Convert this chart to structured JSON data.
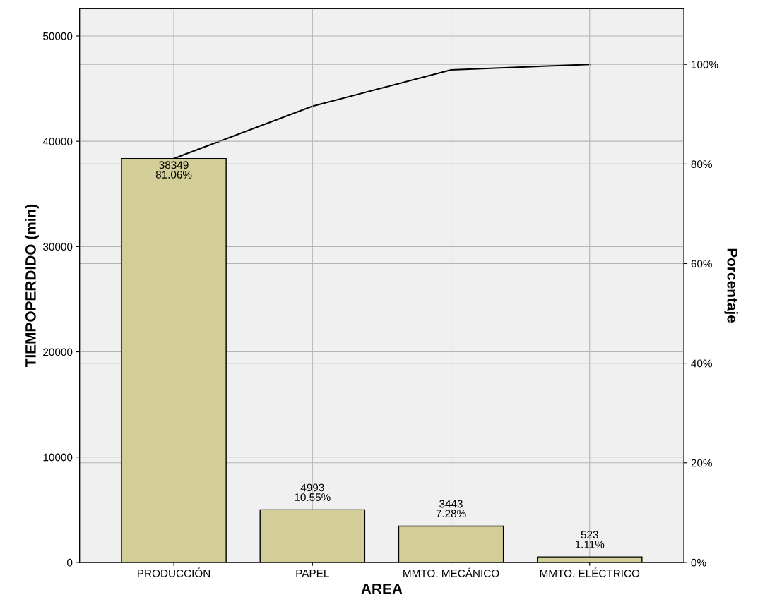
{
  "chart_data": {
    "type": "bar",
    "xlabel": "AREA",
    "ylabel": "TIEMPOPERDIDO (min)",
    "y2label": "Porcentaje",
    "categories": [
      "PRODUCCIÓN",
      "PAPEL",
      "MMTO. MECÁNICO",
      "MMTO. ELÉCTRICO"
    ],
    "series": [
      {
        "color": "#d3ce97",
        "values": [
          38349,
          4993,
          3443,
          523
        ],
        "value_labels": [
          "38349\n81.06%",
          "4993\n10.55%",
          "3443\n7.28%",
          "523\n1.11%"
        ]
      },
      {
        "type": "line",
        "axis": "y2",
        "color": "#000000",
        "values": [
          81.1,
          91.6,
          98.9,
          100
        ]
      }
    ],
    "ylim": [
      0,
      52600
    ],
    "yticks": [
      0,
      10000,
      20000,
      30000,
      40000,
      50000
    ],
    "y2lim": [
      0,
      111.2
    ],
    "y2ticks": [
      {
        "value": 0,
        "label": "0%"
      },
      {
        "value": 20,
        "label": "20%"
      },
      {
        "value": 40,
        "label": "40%"
      },
      {
        "value": 60,
        "label": "60%"
      },
      {
        "value": 80,
        "label": "80%"
      },
      {
        "value": 100,
        "label": "100%"
      }
    ],
    "grid": true,
    "marker": "none",
    "line_style": "solid"
  }
}
